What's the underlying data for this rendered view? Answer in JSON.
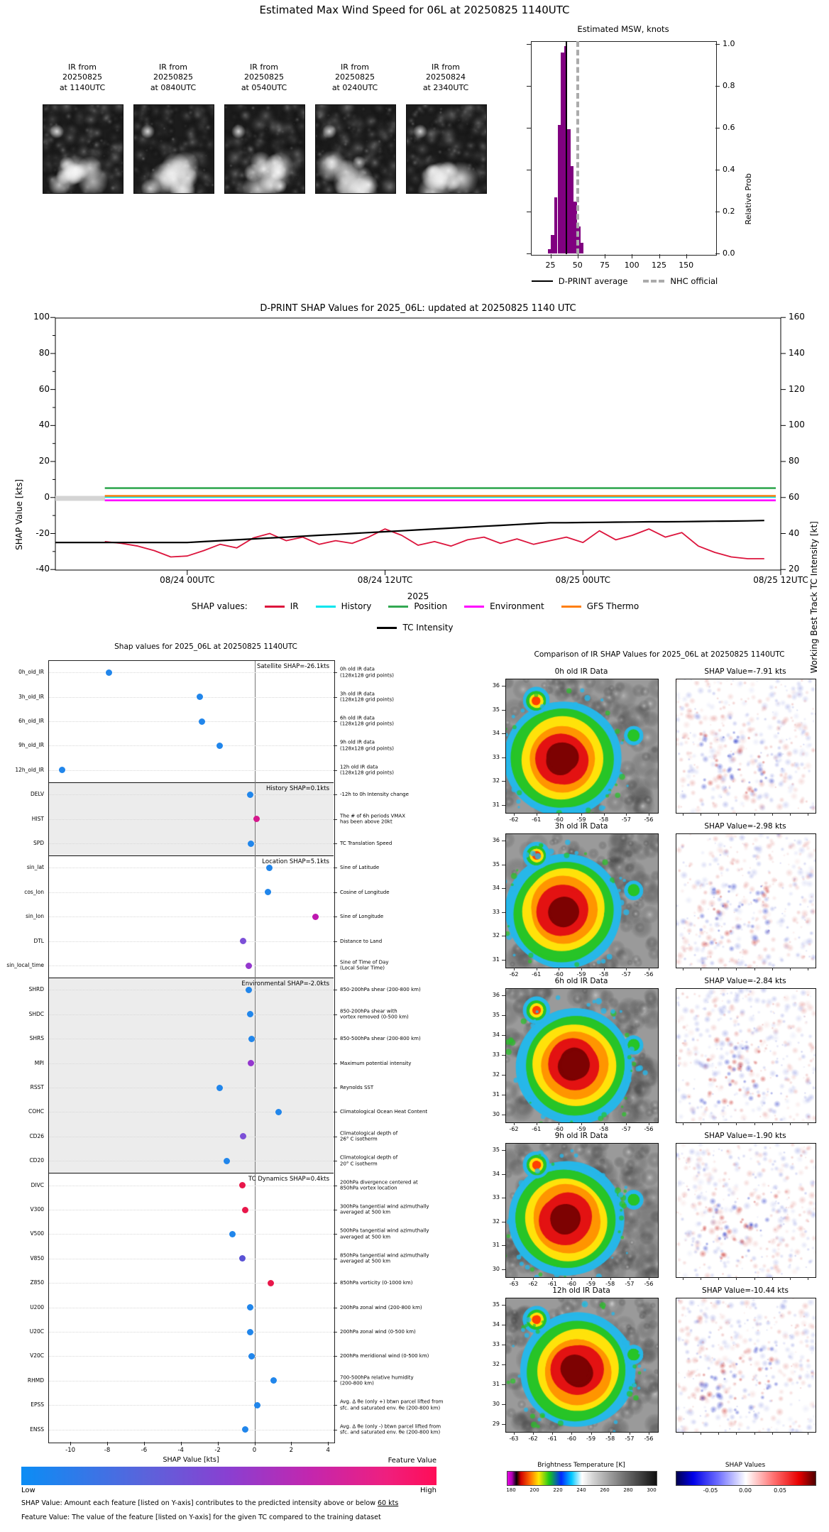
{
  "header": {
    "title": "Estimated Max Wind Speed for 06L at 20250825 1140UTC"
  },
  "ir_thumbnails": [
    {
      "lines": [
        "IR from",
        "20250825",
        "at 1140UTC"
      ]
    },
    {
      "lines": [
        "IR from",
        "20250825",
        "at 0840UTC"
      ]
    },
    {
      "lines": [
        "IR from",
        "20250825",
        "at 0540UTC"
      ]
    },
    {
      "lines": [
        "IR from",
        "20250825",
        "at 0240UTC"
      ]
    },
    {
      "lines": [
        "IR from",
        "20250824",
        "at 2340UTC"
      ]
    }
  ],
  "legends": {
    "histogram_avg": "D-PRINT average",
    "histogram_nhc": "NHC official",
    "timeseries_prefix": "SHAP values:"
  },
  "chart_data": {
    "msw_histogram": {
      "type": "bar",
      "title": "Estimated MSW, knots",
      "ylabel": "Relative Prob",
      "yticks": [
        "0.0",
        "0.2",
        "0.4",
        "0.6",
        "0.8",
        "1.0"
      ],
      "xticks": [
        25,
        50,
        75,
        100,
        125,
        150
      ],
      "xlim": [
        7,
        177
      ],
      "ylim": [
        0,
        1.05
      ],
      "bin_width_kt": 3,
      "bar_color": "#800080",
      "bins": [
        {
          "kt": 24,
          "p": 0.02
        },
        {
          "kt": 27,
          "p": 0.09
        },
        {
          "kt": 30,
          "p": 0.27
        },
        {
          "kt": 33,
          "p": 0.62
        },
        {
          "kt": 36,
          "p": 0.97
        },
        {
          "kt": 39,
          "p": 1.0
        },
        {
          "kt": 42,
          "p": 0.6
        },
        {
          "kt": 45,
          "p": 0.42
        },
        {
          "kt": 48,
          "p": 0.25
        },
        {
          "kt": 51,
          "p": 0.13
        },
        {
          "kt": 54,
          "p": 0.05
        }
      ],
      "dprint_average_kt": 39,
      "nhc_official_kt": 49
    },
    "shap_timeseries": {
      "type": "line",
      "title": "D-PRINT SHAP Values for 2025_06L: updated at 20250825 1140 UTC",
      "ylabel_left": "SHAP Value [kts]",
      "ylabel_right": "Working Best Track TC Intensity [kt]",
      "xlabel": "2025",
      "ylim_left": [
        -40,
        100
      ],
      "ylim_right": [
        20,
        160
      ],
      "yticks_left": [
        100,
        80,
        60,
        40,
        20,
        0,
        -20,
        -40
      ],
      "yticks_right": [
        160,
        140,
        120,
        100,
        80,
        60,
        40,
        20
      ],
      "xtick_labels": [
        "08/24 00UTC",
        "08/24 12UTC",
        "08/25 00UTC",
        "08/25 12UTC"
      ],
      "xtick_hours": [
        8,
        20,
        32,
        44
      ],
      "x_hours_span": 44,
      "series": [
        {
          "name": "IR",
          "color": "#DC143C",
          "axis": "left",
          "start_hour": 3,
          "step_hours": 1,
          "values": [
            -24.5,
            -25.5,
            -27,
            -29.5,
            -33,
            -32.5,
            -29.5,
            -26,
            -28,
            -22.5,
            -20,
            -24,
            -22,
            -26,
            -24,
            -25.5,
            -22,
            -17.5,
            -21,
            -26.5,
            -24.5,
            -27,
            -23.5,
            -22,
            -25.5,
            -23,
            -26,
            -24,
            -22,
            -25,
            -18.5,
            -23.5,
            -21,
            -17.5,
            -22,
            -19.5,
            -27,
            -30.5,
            -33,
            -34,
            -34
          ]
        },
        {
          "name": "History",
          "color": "#00E5EE",
          "axis": "left",
          "const": 0.3
        },
        {
          "name": "Position",
          "color": "#33A852",
          "axis": "left",
          "const": 5.2
        },
        {
          "name": "Environment",
          "color": "#FF00FF",
          "axis": "left",
          "const": -1.6
        },
        {
          "name": "GFS Thermo",
          "color": "#FF7F0E",
          "axis": "left",
          "const": 0.9
        },
        {
          "name": "TC Intensity",
          "color": "#000000",
          "axis": "right",
          "start_hour": 0,
          "step_hours": 1,
          "values": [
            35,
            35,
            35,
            35,
            35,
            35,
            35,
            35,
            35,
            35.5,
            36,
            36.5,
            37,
            37.5,
            38,
            38.5,
            39,
            39.5,
            40,
            40.5,
            41,
            41.5,
            42,
            42.5,
            43,
            43.5,
            44,
            44.5,
            45,
            45.5,
            46,
            46,
            46.1,
            46.2,
            46.3,
            46.4,
            46.5,
            46.5,
            46.6,
            46.7,
            46.8,
            46.9,
            47,
            47.2
          ]
        }
      ]
    },
    "shap_dotplot": {
      "type": "scatter",
      "title": "Shap values for 2025_06L at 20250825 1140UTC",
      "xlabel": "SHAP Value [kts]",
      "xlim": [
        -11.2,
        4.3
      ],
      "xticks": [
        -10,
        -8,
        -6,
        -4,
        -2,
        0,
        2,
        4
      ],
      "sections": [
        {
          "label": "Satellite SHAP=-26.1kts",
          "from": 0,
          "to": 4,
          "shaded": false
        },
        {
          "label": "History SHAP=0.1kts",
          "from": 5,
          "to": 7,
          "shaded": true
        },
        {
          "label": "Location SHAP=5.1kts",
          "from": 8,
          "to": 12,
          "shaded": false
        },
        {
          "label": "Environmental SHAP=-2.0kts",
          "from": 13,
          "to": 20,
          "shaded": true
        },
        {
          "label": "TC Dynamics SHAP=0.4kts",
          "from": 21,
          "to": 31,
          "shaded": false
        }
      ],
      "features": [
        {
          "name": "0h_old_IR",
          "value": -7.91,
          "color": "#2186EB",
          "desc": "0h old IR data\n(128x128 grid points)"
        },
        {
          "name": "3h_old_IR",
          "value": -2.98,
          "color": "#2186EB",
          "desc": "3h old IR data\n(128x128 grid points)"
        },
        {
          "name": "6h_old_IR",
          "value": -2.84,
          "color": "#2186EB",
          "desc": "6h old IR data\n(128x128 grid points)"
        },
        {
          "name": "9h_old_IR",
          "value": -1.9,
          "color": "#2186EB",
          "desc": "9h old IR data\n(128x128 grid points)"
        },
        {
          "name": "12h_old_IR",
          "value": -10.44,
          "color": "#2186EB",
          "desc": "12h old IR data\n(128x128 grid points)"
        },
        {
          "name": "DELV",
          "value": -0.25,
          "color": "#2186EB",
          "desc": "-12h to 0h Intensity change"
        },
        {
          "name": "HIST",
          "value": 0.1,
          "color": "#D5178C",
          "desc": "The # of 6h periods VMAX\nhas been above 20kt"
        },
        {
          "name": "SPD",
          "value": -0.2,
          "color": "#2186EB",
          "desc": "TC Translation Speed"
        },
        {
          "name": "sin_lat",
          "value": 0.8,
          "color": "#2186EB",
          "desc": "Sine of Latitude"
        },
        {
          "name": "cos_lon",
          "value": 0.75,
          "color": "#2186EB",
          "desc": "Cosine of Longitude"
        },
        {
          "name": "sin_lon",
          "value": 3.3,
          "color": "#BE18B0",
          "desc": "Sine of Longitude"
        },
        {
          "name": "DTL",
          "value": -0.6,
          "color": "#7C4FD7",
          "desc": "Distance to Land"
        },
        {
          "name": "sin_local_time",
          "value": -0.3,
          "color": "#9437CE",
          "desc": "Sine of Time of Day\n(Local Solar Time)"
        },
        {
          "name": "SHRD",
          "value": -0.3,
          "color": "#2186EB",
          "desc": "850-200hPa shear (200-800 km)"
        },
        {
          "name": "SHDC",
          "value": -0.25,
          "color": "#2186EB",
          "desc": "850-200hPa shear with\nvortex removed (0-500 km)"
        },
        {
          "name": "SHRS",
          "value": -0.15,
          "color": "#2186EB",
          "desc": "850-500hPa shear (200-800 km)"
        },
        {
          "name": "MPI",
          "value": -0.2,
          "color": "#9437CE",
          "desc": "Maximum potential intensity"
        },
        {
          "name": "RSST",
          "value": -1.9,
          "color": "#2186EB",
          "desc": "Reynolds SST"
        },
        {
          "name": "COHC",
          "value": 1.3,
          "color": "#2186EB",
          "desc": "Climatological Ocean Heat Content"
        },
        {
          "name": "CD26",
          "value": -0.6,
          "color": "#7C4FD7",
          "desc": "Climatological depth of\n26° C isotherm"
        },
        {
          "name": "CD20",
          "value": -1.5,
          "color": "#2186EB",
          "desc": "Climatological depth of\n20° C isotherm"
        },
        {
          "name": "DIVC",
          "value": -0.65,
          "color": "#E8174A",
          "desc": "200hPa divergence centered at\n850hPa vortex location"
        },
        {
          "name": "V300",
          "value": -0.5,
          "color": "#E8174A",
          "desc": "300hPa tangential wind azimuthally\naveraged at 500 km"
        },
        {
          "name": "V500",
          "value": -1.2,
          "color": "#2186EB",
          "desc": "500hPa tangential wind azimuthally\naveraged at 500 km"
        },
        {
          "name": "V850",
          "value": -0.65,
          "color": "#5A52D5",
          "desc": "850hPa tangential wind azimuthally\naveraged at 500 km"
        },
        {
          "name": "Z850",
          "value": 0.9,
          "color": "#E8174A",
          "desc": "850hPa vorticity (0-1000 km)"
        },
        {
          "name": "U200",
          "value": -0.25,
          "color": "#2186EB",
          "desc": "200hPa zonal wind (200-800 km)"
        },
        {
          "name": "U20C",
          "value": -0.25,
          "color": "#2186EB",
          "desc": "200hPa zonal wind (0-500 km)"
        },
        {
          "name": "V20C",
          "value": -0.15,
          "color": "#2186EB",
          "desc": "200hPa meridional wind (0-500 km)"
        },
        {
          "name": "RHMD",
          "value": 1.05,
          "color": "#2186EB",
          "desc": "700-500hPa relative humidity\n(200-800 km)"
        },
        {
          "name": "EPSS",
          "value": 0.15,
          "color": "#2186EB",
          "desc": "Avg. Δ θe (only +) btwn parcel lifted from\nsfc. and saturated env. θe (200-800 km)"
        },
        {
          "name": "ENSS",
          "value": -0.5,
          "color": "#2186EB",
          "desc": "Avg. Δ θe (only -) btwn parcel lifted from\nsfc. and saturated env. θe (200-800 km)"
        }
      ]
    }
  },
  "comparison": {
    "title": "Comparison of IR SHAP Values for 2025_06L at 20250825 1140UTC",
    "rows": [
      {
        "ir_title": "0h old IR Data",
        "shap_title": "SHAP Value=-7.91 kts",
        "lat": [
          "36",
          "35",
          "34",
          "33",
          "32",
          "31"
        ],
        "lon": [
          "-62",
          "-61",
          "-60",
          "-59",
          "-58",
          "-57",
          "-56"
        ]
      },
      {
        "ir_title": "3h old IR Data",
        "shap_title": "SHAP Value=-2.98 kts",
        "lat": [
          "36",
          "35",
          "34",
          "33",
          "32",
          "31"
        ],
        "lon": [
          "-62",
          "-61",
          "-60",
          "-59",
          "-58",
          "-57",
          "-56"
        ]
      },
      {
        "ir_title": "6h old IR Data",
        "shap_title": "SHAP Value=-2.84 kts",
        "lat": [
          "36",
          "35",
          "34",
          "33",
          "32",
          "31",
          "30"
        ],
        "lon": [
          "-62",
          "-61",
          "-60",
          "-59",
          "-58",
          "-57",
          "-56"
        ]
      },
      {
        "ir_title": "9h old IR Data",
        "shap_title": "SHAP Value=-1.90 kts",
        "lat": [
          "35",
          "34",
          "33",
          "32",
          "31",
          "30"
        ],
        "lon": [
          "-63",
          "-62",
          "-61",
          "-60",
          "-59",
          "-58",
          "-57",
          "-56"
        ]
      },
      {
        "ir_title": "12h old IR Data",
        "shap_title": "SHAP Value=-10.44 kts",
        "lat": [
          "35",
          "34",
          "33",
          "32",
          "31",
          "30",
          "29"
        ],
        "lon": [
          "-63",
          "-62",
          "-61",
          "-60",
          "-59",
          "-58",
          "-57",
          "-56"
        ]
      }
    ],
    "bt_colorbar": {
      "title": "Brightness Temperature [K]",
      "ticks": [
        "180",
        "200",
        "220",
        "240",
        "260",
        "280",
        "300"
      ]
    },
    "shap_colorbar": {
      "title": "SHAP Values",
      "ticks": [
        "-0.05",
        "0.00",
        "0.05"
      ]
    }
  },
  "footer": {
    "feature_value_title": "Feature Value",
    "low": "Low",
    "high": "High",
    "note1_prefix": "SHAP Value: Amount each feature [listed on Y-axis] contributes to the predicted intensity above or below ",
    "note1_underline": "60 kts",
    "note2": "Feature Value: The value of the feature [listed on Y-axis] for the given TC compared to the training dataset"
  }
}
